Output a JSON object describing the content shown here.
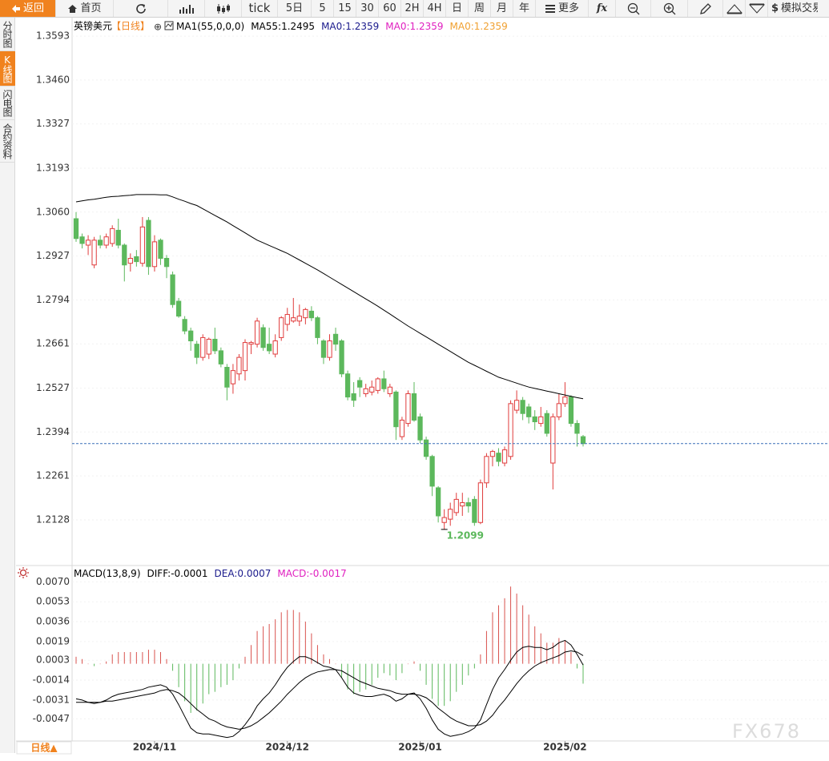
{
  "toolbar": {
    "items": [
      "返回",
      "首页",
      "tick",
      "5日",
      "5",
      "15",
      "30",
      "60",
      "2H",
      "4H",
      "日",
      "周",
      "月",
      "年",
      "更多",
      "fx",
      "模拟交易"
    ]
  },
  "sidebar": [
    "分时图",
    "K线图",
    "闪电图",
    "合约资料"
  ],
  "watermark": "FX678",
  "chart_data": {
    "type": "candlestick",
    "title": "英镑美元",
    "period": "【日线】",
    "legend": [
      {
        "text": "MA1(55,0,0,0)",
        "color": "#000000"
      },
      {
        "text": "MA55:1.2495",
        "color": "#000000"
      },
      {
        "text": "MA0:1.2359",
        "color": "#1a1a8c"
      },
      {
        "text": "MA0:1.2359",
        "color": "#e020c0"
      },
      {
        "text": "MA0:1.2359",
        "color": "#f0a030"
      }
    ],
    "x_axis_button": "日线▲",
    "categories": [
      null,
      null,
      null,
      null,
      null,
      null,
      null,
      null,
      null,
      null,
      null,
      null,
      null,
      "2024/11",
      null,
      null,
      null,
      null,
      null,
      null,
      null,
      null,
      null,
      null,
      null,
      null,
      null,
      null,
      null,
      null,
      null,
      null,
      null,
      null,
      null,
      "2024/12",
      null,
      null,
      null,
      null,
      null,
      null,
      null,
      null,
      null,
      null,
      null,
      null,
      null,
      null,
      null,
      null,
      null,
      null,
      null,
      null,
      null,
      "2025/01",
      null,
      null,
      null,
      null,
      null,
      null,
      null,
      null,
      null,
      null,
      null,
      null,
      null,
      null,
      null,
      null,
      null,
      null,
      null,
      null,
      null,
      null,
      null,
      "2025/02",
      null,
      null,
      null
    ],
    "candles": {
      "open": [
        1.304,
        1.2985,
        1.296,
        1.29,
        1.2975,
        1.296,
        1.2965,
        1.3005,
        1.296,
        1.2905,
        1.2925,
        1.2905,
        1.3035,
        1.2895,
        1.2975,
        1.292,
        1.287,
        1.279,
        1.2735,
        1.27,
        1.266,
        1.262,
        1.263,
        1.2675,
        1.264,
        1.259,
        1.254,
        1.257,
        1.258,
        1.266,
        1.266,
        1.271,
        1.266,
        1.263,
        1.268,
        1.272,
        1.273,
        1.273,
        1.274,
        1.276,
        1.274,
        1.267,
        1.262,
        1.269,
        1.267,
        1.257,
        1.251,
        1.255,
        1.251,
        1.2515,
        1.252,
        1.2555,
        1.251,
        1.2515,
        1.238,
        1.242,
        1.251,
        1.244,
        1.237,
        1.232,
        1.2225,
        1.212,
        1.213,
        1.215,
        1.217,
        1.218,
        1.219,
        1.212,
        1.224,
        1.232,
        1.233,
        1.23,
        1.232,
        1.246,
        1.249,
        1.247,
        1.244,
        1.242,
        1.245,
        1.23,
        1.244,
        1.248,
        1.25,
        1.242,
        1.238
      ],
      "high": [
        1.306,
        1.2995,
        1.299,
        1.2985,
        1.299,
        1.2995,
        1.302,
        1.304,
        1.2965,
        1.2935,
        1.2945,
        1.3045,
        1.3045,
        1.299,
        1.298,
        1.293,
        1.288,
        1.28,
        1.2745,
        1.271,
        1.267,
        1.269,
        1.268,
        1.271,
        1.265,
        1.26,
        1.26,
        1.263,
        1.2675,
        1.267,
        1.274,
        1.272,
        1.271,
        1.269,
        1.2745,
        1.277,
        1.28,
        1.278,
        1.277,
        1.2775,
        1.2745,
        1.2675,
        1.269,
        1.271,
        1.2675,
        1.258,
        1.2545,
        1.256,
        1.254,
        1.255,
        1.256,
        1.258,
        1.254,
        1.252,
        1.244,
        1.252,
        1.2545,
        1.245,
        1.238,
        1.2325,
        1.223,
        1.216,
        1.218,
        1.221,
        1.221,
        1.2195,
        1.22,
        1.225,
        1.233,
        1.234,
        1.2345,
        1.235,
        1.249,
        1.252,
        1.25,
        1.248,
        1.246,
        1.247,
        1.246,
        1.245,
        1.251,
        1.2545,
        1.2505,
        1.243,
        1.2385
      ],
      "low": [
        1.297,
        1.295,
        1.293,
        1.289,
        1.295,
        1.295,
        1.2955,
        1.295,
        1.285,
        1.288,
        1.2895,
        1.2895,
        1.287,
        1.288,
        1.29,
        1.286,
        1.277,
        1.274,
        1.269,
        1.264,
        1.26,
        1.261,
        1.2615,
        1.263,
        1.259,
        1.249,
        1.251,
        1.255,
        1.255,
        1.263,
        1.265,
        1.264,
        1.263,
        1.262,
        1.267,
        1.27,
        1.2725,
        1.2715,
        1.272,
        1.273,
        1.266,
        1.26,
        1.261,
        1.264,
        1.256,
        1.249,
        1.247,
        1.25,
        1.25,
        1.2505,
        1.251,
        1.2515,
        1.25,
        1.237,
        1.237,
        1.241,
        1.2425,
        1.236,
        1.231,
        1.22,
        1.212,
        1.2099,
        1.211,
        1.214,
        1.214,
        1.215,
        1.211,
        1.2115,
        1.2225,
        1.229,
        1.229,
        1.229,
        1.231,
        1.245,
        1.243,
        1.242,
        1.24,
        1.241,
        1.238,
        1.222,
        1.243,
        1.247,
        1.241,
        1.235,
        1.235
      ],
      "close": [
        1.298,
        1.2965,
        1.2975,
        1.2975,
        1.296,
        1.2985,
        1.301,
        1.296,
        1.29,
        1.292,
        1.291,
        1.3015,
        1.2895,
        1.297,
        1.292,
        1.2895,
        1.278,
        1.2745,
        1.27,
        1.267,
        1.262,
        1.268,
        1.2675,
        1.264,
        1.26,
        1.253,
        1.258,
        1.262,
        1.2665,
        1.2665,
        1.273,
        1.265,
        1.264,
        1.267,
        1.274,
        1.275,
        1.274,
        1.2745,
        1.2765,
        1.274,
        1.268,
        1.262,
        1.267,
        1.266,
        1.257,
        1.25,
        1.249,
        1.253,
        1.2525,
        1.253,
        1.2555,
        1.2525,
        1.253,
        1.241,
        1.243,
        1.251,
        1.243,
        1.237,
        1.232,
        1.223,
        1.214,
        1.2135,
        1.216,
        1.219,
        1.218,
        1.217,
        1.212,
        1.224,
        1.232,
        1.2335,
        1.2305,
        1.234,
        1.248,
        1.249,
        1.245,
        1.244,
        1.2425,
        1.244,
        1.239,
        1.244,
        1.248,
        1.25,
        1.242,
        1.239,
        1.2359
      ]
    },
    "up_color": "#e03c3c",
    "down_color": "#5cb85c",
    "ma_line": {
      "color": "#000000",
      "values": [
        1.3091,
        1.3094,
        1.3097,
        1.3099,
        1.3102,
        1.3105,
        1.3107,
        1.3108,
        1.311,
        1.3111,
        1.3113,
        1.3113,
        1.3113,
        1.3113,
        1.3112,
        1.3112,
        1.3106,
        1.3099,
        1.3093,
        1.3086,
        1.308,
        1.307,
        1.306,
        1.305,
        1.304,
        1.303,
        1.3019,
        1.3008,
        1.2997,
        1.2986,
        1.2975,
        1.2967,
        1.2959,
        1.2951,
        1.2943,
        1.2935,
        1.2925,
        1.2915,
        1.2905,
        1.2895,
        1.2885,
        1.2874,
        1.2863,
        1.2852,
        1.2841,
        1.283,
        1.2819,
        1.2808,
        1.2797,
        1.2786,
        1.2775,
        1.2763,
        1.2751,
        1.2739,
        1.2727,
        1.2715,
        1.2704,
        1.2693,
        1.2682,
        1.2671,
        1.266,
        1.2649,
        1.2638,
        1.2627,
        1.2616,
        1.2605,
        1.2596,
        1.2587,
        1.2578,
        1.2569,
        1.256,
        1.2554,
        1.2548,
        1.2542,
        1.2536,
        1.253,
        1.2526,
        1.2522,
        1.2518,
        1.2514,
        1.251,
        1.2506,
        1.2502,
        1.2498,
        1.2495
      ]
    },
    "last_price_line": {
      "color": "#3a6fb8"
    },
    "low_label_color": "#5cb85c",
    "ylim": [
      1.1992,
      1.3649
    ],
    "yticks": [
      1.3593,
      {
        "value": 1.346,
        "label": "1.3460"
      },
      1.3327,
      1.3193,
      {
        "value": 1.306,
        "label": "1.3060"
      },
      1.2927,
      1.2794,
      1.2661,
      1.2527,
      1.2394,
      1.2261,
      1.2128
    ],
    "grid": true,
    "macd": {
      "legend": [
        {
          "text": "MACD(13,8,9)",
          "color": "#000000"
        },
        {
          "text": "DIFF:-0.0001",
          "color": "#000000"
        },
        {
          "text": "DEA:0.0007",
          "color": "#1a1a8c"
        },
        {
          "text": "MACD:-0.0017",
          "color": "#e020c0"
        }
      ],
      "ylim": [
        -0.0066,
        0.0073
      ],
      "yticks": [
        {
          "value": 0.007,
          "label": "0.0070"
        },
        0.0053,
        0.0036,
        0.0019,
        0.0003,
        -0.0014,
        -0.0031,
        -0.0047
      ],
      "hist": {
        "up_color": "#d9534f",
        "down_color": "#5cb85c",
        "values": [
          0.0006,
          0.0004,
          0,
          -0.0002,
          0,
          0.0002,
          0.0008,
          0.001,
          0.001,
          0.001,
          0.001,
          0.001,
          0.0012,
          0.0012,
          0.001,
          0.0004,
          -0.0006,
          -0.002,
          -0.0032,
          -0.0042,
          -0.004,
          -0.0034,
          -0.0026,
          -0.0024,
          -0.002,
          -0.0018,
          -0.0014,
          -0.0004,
          0.0006,
          0.0016,
          0.0028,
          0.0032,
          0.0034,
          0.0038,
          0.0044,
          0.0046,
          0.0046,
          0.0044,
          0.0036,
          0.0026,
          0.0016,
          0.0008,
          0.0004,
          0,
          -0.0012,
          -0.0022,
          -0.0026,
          -0.0024,
          -0.0022,
          -0.0018,
          -0.0012,
          -0.0008,
          -0.001,
          -0.0014,
          -0.0008,
          0,
          0.0002,
          -0.0006,
          -0.0018,
          -0.003,
          -0.0036,
          -0.0036,
          -0.0032,
          -0.0024,
          -0.0018,
          -0.001,
          -0.0004,
          0.0008,
          0.0028,
          0.0044,
          0.005,
          0.0056,
          0.0066,
          0.006,
          0.005,
          0.0042,
          0.0032,
          0.0026,
          0.0018,
          0.0018,
          0.0022,
          0.002,
          0.001,
          -0.0004,
          -0.0017
        ]
      },
      "diff": {
        "color": "#000000",
        "values": [
          -0.003,
          -0.0031,
          -0.0033,
          -0.0034,
          -0.0033,
          -0.0031,
          -0.0028,
          -0.0026,
          -0.0025,
          -0.0024,
          -0.0023,
          -0.0022,
          -0.002,
          -0.0019,
          -0.0018,
          -0.002,
          -0.0026,
          -0.0035,
          -0.0045,
          -0.0055,
          -0.0059,
          -0.006,
          -0.006,
          -0.0061,
          -0.0062,
          -0.0063,
          -0.0062,
          -0.0058,
          -0.0052,
          -0.0045,
          -0.0036,
          -0.003,
          -0.0025,
          -0.0018,
          -0.001,
          -0.0003,
          0.0002,
          0.0006,
          0.0006,
          0.0004,
          0.0001,
          -0.0002,
          -0.0003,
          -0.0005,
          -0.0012,
          -0.002,
          -0.0025,
          -0.0027,
          -0.0028,
          -0.0028,
          -0.0027,
          -0.0026,
          -0.0028,
          -0.0032,
          -0.003,
          -0.0026,
          -0.0025,
          -0.003,
          -0.0038,
          -0.0048,
          -0.0056,
          -0.006,
          -0.0062,
          -0.0061,
          -0.006,
          -0.0058,
          -0.0055,
          -0.0048,
          -0.0035,
          -0.0022,
          -0.0012,
          -0.0005,
          0.0003,
          0.001,
          0.0014,
          0.0015,
          0.0014,
          0.0014,
          0.0012,
          0.0014,
          0.0018,
          0.002,
          0.0016,
          0.0008,
          -0.0001
        ]
      },
      "dea": {
        "color": "#000000",
        "values": [
          -0.0033,
          -0.0033,
          -0.0033,
          -0.0033,
          -0.0033,
          -0.0032,
          -0.0032,
          -0.0031,
          -0.003,
          -0.0029,
          -0.0028,
          -0.0027,
          -0.0026,
          -0.0025,
          -0.0023,
          -0.0022,
          -0.0023,
          -0.0025,
          -0.0029,
          -0.0034,
          -0.0039,
          -0.0043,
          -0.0047,
          -0.0049,
          -0.0052,
          -0.0054,
          -0.0055,
          -0.0056,
          -0.0055,
          -0.0053,
          -0.005,
          -0.0046,
          -0.0042,
          -0.0037,
          -0.0032,
          -0.0026,
          -0.0021,
          -0.0016,
          -0.0012,
          -0.0009,
          -0.0007,
          -0.0006,
          -0.0005,
          -0.0005,
          -0.0006,
          -0.0009,
          -0.0012,
          -0.0015,
          -0.0017,
          -0.0019,
          -0.0021,
          -0.0022,
          -0.0023,
          -0.0025,
          -0.0026,
          -0.0026,
          -0.0026,
          -0.0027,
          -0.0029,
          -0.0033,
          -0.0038,
          -0.0042,
          -0.0046,
          -0.0049,
          -0.0051,
          -0.0053,
          -0.0053,
          -0.0052,
          -0.0049,
          -0.0044,
          -0.0037,
          -0.0031,
          -0.0024,
          -0.0017,
          -0.0011,
          -0.0006,
          -0.0002,
          0.0001,
          0.0003,
          0.0005,
          0.0007,
          0.001,
          0.0011,
          0.001,
          0.0007
        ]
      }
    }
  }
}
